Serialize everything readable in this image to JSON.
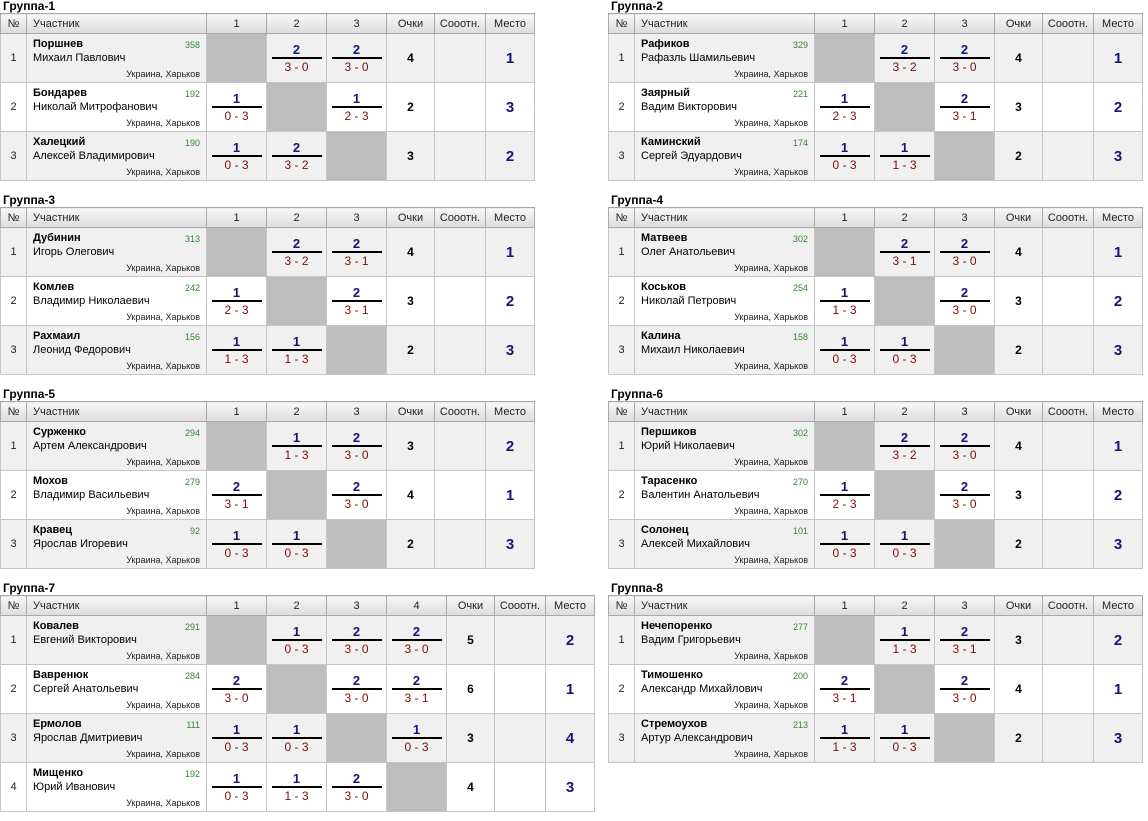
{
  "header_labels": {
    "num": "№",
    "player": "Участник",
    "points": "Очки",
    "ratio": "Сооотн.",
    "place": "Место"
  },
  "groups": [
    {
      "title": "Группа-1",
      "cols": [
        "1",
        "2",
        "3"
      ],
      "rows": [
        {
          "n": "1",
          "surname": "Поршнев",
          "name": "Михаил Павлович",
          "rating": "358",
          "loc": "Украина, Харьков",
          "results": [
            null,
            {
              "p": "2",
              "s": "3 - 0"
            },
            {
              "p": "2",
              "s": "3 - 0"
            }
          ],
          "points": "4",
          "ratio": "",
          "place": "1"
        },
        {
          "n": "2",
          "surname": "Бондарев",
          "name": "Николай Митрофанович",
          "rating": "192",
          "loc": "Украина, Харьков",
          "results": [
            {
              "p": "1",
              "s": "0 - 3"
            },
            null,
            {
              "p": "1",
              "s": "2 - 3"
            }
          ],
          "points": "2",
          "ratio": "",
          "place": "3"
        },
        {
          "n": "3",
          "surname": "Халецкий",
          "name": "Алексей Владимирович",
          "rating": "190",
          "loc": "Украина, Харьков",
          "results": [
            {
              "p": "1",
              "s": "0 - 3"
            },
            {
              "p": "2",
              "s": "3 - 2"
            },
            null
          ],
          "points": "3",
          "ratio": "",
          "place": "2"
        }
      ]
    },
    {
      "title": "Группа-2",
      "cols": [
        "1",
        "2",
        "3"
      ],
      "rows": [
        {
          "n": "1",
          "surname": "Рафиков",
          "name": "Рафазль Шамильевич",
          "rating": "329",
          "loc": "Украина, Харьков",
          "results": [
            null,
            {
              "p": "2",
              "s": "3 - 2"
            },
            {
              "p": "2",
              "s": "3 - 0"
            }
          ],
          "points": "4",
          "ratio": "",
          "place": "1"
        },
        {
          "n": "2",
          "surname": "Заярный",
          "name": "Вадим Викторович",
          "rating": "221",
          "loc": "Украина, Харьков",
          "results": [
            {
              "p": "1",
              "s": "2 - 3"
            },
            null,
            {
              "p": "2",
              "s": "3 - 1"
            }
          ],
          "points": "3",
          "ratio": "",
          "place": "2"
        },
        {
          "n": "3",
          "surname": "Каминский",
          "name": "Сергей Эдуардович",
          "rating": "174",
          "loc": "Украина, Харьков",
          "results": [
            {
              "p": "1",
              "s": "0 - 3"
            },
            {
              "p": "1",
              "s": "1 - 3"
            },
            null
          ],
          "points": "2",
          "ratio": "",
          "place": "3"
        }
      ]
    },
    {
      "title": "Группа-3",
      "cols": [
        "1",
        "2",
        "3"
      ],
      "rows": [
        {
          "n": "1",
          "surname": "Дубинин",
          "name": "Игорь Олегович",
          "rating": "313",
          "loc": "Украина, Харьков",
          "results": [
            null,
            {
              "p": "2",
              "s": "3 - 2"
            },
            {
              "p": "2",
              "s": "3 - 1"
            }
          ],
          "points": "4",
          "ratio": "",
          "place": "1"
        },
        {
          "n": "2",
          "surname": "Комлев",
          "name": "Владимир Николаевич",
          "rating": "242",
          "loc": "Украина, Харьков",
          "results": [
            {
              "p": "1",
              "s": "2 - 3"
            },
            null,
            {
              "p": "2",
              "s": "3 - 1"
            }
          ],
          "points": "3",
          "ratio": "",
          "place": "2"
        },
        {
          "n": "3",
          "surname": "Рахмаил",
          "name": "Леонид Федорович",
          "rating": "156",
          "loc": "Украина, Харьков",
          "results": [
            {
              "p": "1",
              "s": "1 - 3"
            },
            {
              "p": "1",
              "s": "1 - 3"
            },
            null
          ],
          "points": "2",
          "ratio": "",
          "place": "3"
        }
      ]
    },
    {
      "title": "Группа-4",
      "cols": [
        "1",
        "2",
        "3"
      ],
      "rows": [
        {
          "n": "1",
          "surname": "Матвеев",
          "name": "Олег Анатольевич",
          "rating": "302",
          "loc": "Украина, Харьков",
          "results": [
            null,
            {
              "p": "2",
              "s": "3 - 1"
            },
            {
              "p": "2",
              "s": "3 - 0"
            }
          ],
          "points": "4",
          "ratio": "",
          "place": "1"
        },
        {
          "n": "2",
          "surname": "Коськов",
          "name": "Николай Петрович",
          "rating": "254",
          "loc": "Украина, Харьков",
          "results": [
            {
              "p": "1",
              "s": "1 - 3"
            },
            null,
            {
              "p": "2",
              "s": "3 - 0"
            }
          ],
          "points": "3",
          "ratio": "",
          "place": "2"
        },
        {
          "n": "3",
          "surname": "Калина",
          "name": "Михаил Николаевич",
          "rating": "158",
          "loc": "Украина, Харьков",
          "results": [
            {
              "p": "1",
              "s": "0 - 3"
            },
            {
              "p": "1",
              "s": "0 - 3"
            },
            null
          ],
          "points": "2",
          "ratio": "",
          "place": "3"
        }
      ]
    },
    {
      "title": "Группа-5",
      "cols": [
        "1",
        "2",
        "3"
      ],
      "rows": [
        {
          "n": "1",
          "surname": "Сурженко",
          "name": "Артем Александрович",
          "rating": "294",
          "loc": "Украина, Харьков",
          "results": [
            null,
            {
              "p": "1",
              "s": "1 - 3"
            },
            {
              "p": "2",
              "s": "3 - 0"
            }
          ],
          "points": "3",
          "ratio": "",
          "place": "2"
        },
        {
          "n": "2",
          "surname": "Мохов",
          "name": "Владимир Васильевич",
          "rating": "279",
          "loc": "Украина, Харьков",
          "results": [
            {
              "p": "2",
              "s": "3 - 1"
            },
            null,
            {
              "p": "2",
              "s": "3 - 0"
            }
          ],
          "points": "4",
          "ratio": "",
          "place": "1"
        },
        {
          "n": "3",
          "surname": "Кравец",
          "name": "Ярослав Игоревич",
          "rating": "92",
          "loc": "Украина, Харьков",
          "results": [
            {
              "p": "1",
              "s": "0 - 3"
            },
            {
              "p": "1",
              "s": "0 - 3"
            },
            null
          ],
          "points": "2",
          "ratio": "",
          "place": "3"
        }
      ]
    },
    {
      "title": "Группа-6",
      "cols": [
        "1",
        "2",
        "3"
      ],
      "rows": [
        {
          "n": "1",
          "surname": "Першиков",
          "name": "Юрий Николаевич",
          "rating": "302",
          "loc": "Украина, Харьков",
          "results": [
            null,
            {
              "p": "2",
              "s": "3 - 2"
            },
            {
              "p": "2",
              "s": "3 - 0"
            }
          ],
          "points": "4",
          "ratio": "",
          "place": "1"
        },
        {
          "n": "2",
          "surname": "Тарасенко",
          "name": "Валентин Анатольевич",
          "rating": "270",
          "loc": "Украина, Харьков",
          "results": [
            {
              "p": "1",
              "s": "2 - 3"
            },
            null,
            {
              "p": "2",
              "s": "3 - 0"
            }
          ],
          "points": "3",
          "ratio": "",
          "place": "2"
        },
        {
          "n": "3",
          "surname": "Солонец",
          "name": "Алексей Михайлович",
          "rating": "101",
          "loc": "Украина, Харьков",
          "results": [
            {
              "p": "1",
              "s": "0 - 3"
            },
            {
              "p": "1",
              "s": "0 - 3"
            },
            null
          ],
          "points": "2",
          "ratio": "",
          "place": "3"
        }
      ]
    },
    {
      "title": "Группа-7",
      "cols": [
        "1",
        "2",
        "3",
        "4"
      ],
      "rows": [
        {
          "n": "1",
          "surname": "Ковалев",
          "name": "Евгений Викторович",
          "rating": "291",
          "loc": "Украина, Харьков",
          "results": [
            null,
            {
              "p": "1",
              "s": "0 - 3"
            },
            {
              "p": "2",
              "s": "3 - 0"
            },
            {
              "p": "2",
              "s": "3 - 0"
            }
          ],
          "points": "5",
          "ratio": "",
          "place": "2"
        },
        {
          "n": "2",
          "surname": "Вавренюк",
          "name": "Сергей Анатольевич",
          "rating": "284",
          "loc": "Украина, Харьков",
          "results": [
            {
              "p": "2",
              "s": "3 - 0"
            },
            null,
            {
              "p": "2",
              "s": "3 - 0"
            },
            {
              "p": "2",
              "s": "3 - 1"
            }
          ],
          "points": "6",
          "ratio": "",
          "place": "1"
        },
        {
          "n": "3",
          "surname": "Ермолов",
          "name": "Ярослав Дмитриевич",
          "rating": "111",
          "loc": "Украина, Харьков",
          "results": [
            {
              "p": "1",
              "s": "0 - 3"
            },
            {
              "p": "1",
              "s": "0 - 3"
            },
            null,
            {
              "p": "1",
              "s": "0 - 3"
            }
          ],
          "points": "3",
          "ratio": "",
          "place": "4"
        },
        {
          "n": "4",
          "surname": "Мищенко",
          "name": "Юрий Иванович",
          "rating": "192",
          "loc": "Украина, Харьков",
          "results": [
            {
              "p": "1",
              "s": "0 - 3"
            },
            {
              "p": "1",
              "s": "1 - 3"
            },
            {
              "p": "2",
              "s": "3 - 0"
            },
            null
          ],
          "points": "4",
          "ratio": "",
          "place": "3"
        }
      ]
    },
    {
      "title": "Группа-8",
      "cols": [
        "1",
        "2",
        "3"
      ],
      "rows": [
        {
          "n": "1",
          "surname": "Нечепоренко",
          "name": "Вадим Григорьевич",
          "rating": "277",
          "loc": "Украина, Харьков",
          "results": [
            null,
            {
              "p": "1",
              "s": "1 - 3"
            },
            {
              "p": "2",
              "s": "3 - 1"
            }
          ],
          "points": "3",
          "ratio": "",
          "place": "2"
        },
        {
          "n": "2",
          "surname": "Тимошенко",
          "name": "Александр Михайлович",
          "rating": "200",
          "loc": "Украина, Харьков",
          "results": [
            {
              "p": "2",
              "s": "3 - 1"
            },
            null,
            {
              "p": "2",
              "s": "3 - 0"
            }
          ],
          "points": "4",
          "ratio": "",
          "place": "1"
        },
        {
          "n": "3",
          "surname": "Стремоухов",
          "name": "Артур Александрович",
          "rating": "213",
          "loc": "Украина, Харьков",
          "results": [
            {
              "p": "1",
              "s": "1 - 3"
            },
            {
              "p": "1",
              "s": "0 - 3"
            },
            null
          ],
          "points": "2",
          "ratio": "",
          "place": "3"
        }
      ]
    }
  ]
}
